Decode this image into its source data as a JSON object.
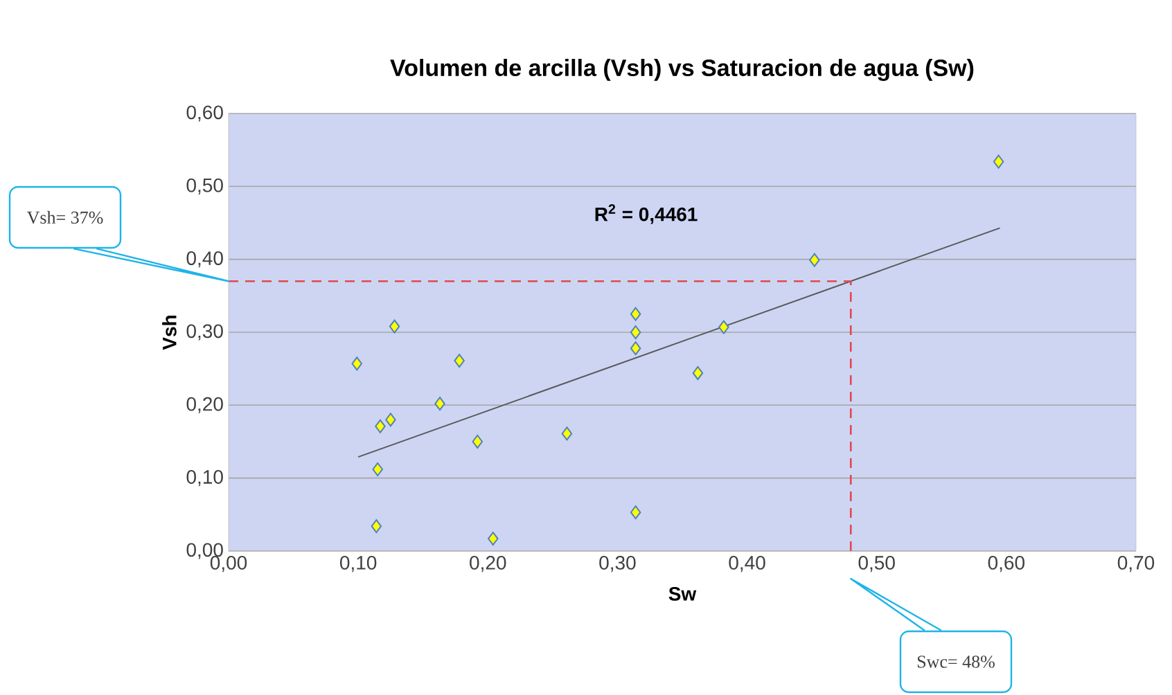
{
  "chart_data": {
    "type": "scatter",
    "title": "Volumen de arcilla (Vsh) vs Saturacion de agua (Sw)",
    "xlabel": "Sw",
    "ylabel": "Vsh",
    "xlim": [
      0,
      0.7
    ],
    "ylim": [
      0,
      0.6
    ],
    "xticks": [
      {
        "value": 0,
        "label": "0,00"
      },
      {
        "value": 0.1,
        "label": "0,10"
      },
      {
        "value": 0.2,
        "label": "0,20"
      },
      {
        "value": 0.3,
        "label": "0,30"
      },
      {
        "value": 0.4,
        "label": "0,40"
      },
      {
        "value": 0.5,
        "label": "0,50"
      },
      {
        "value": 0.6,
        "label": "0,60"
      },
      {
        "value": 0.7,
        "label": "0,70"
      }
    ],
    "yticks": [
      {
        "value": 0,
        "label": "0,00"
      },
      {
        "value": 0.1,
        "label": "0,10"
      },
      {
        "value": 0.2,
        "label": "0,20"
      },
      {
        "value": 0.3,
        "label": "0,30"
      },
      {
        "value": 0.4,
        "label": "0,40"
      },
      {
        "value": 0.5,
        "label": "0,50"
      },
      {
        "value": 0.6,
        "label": "0,60"
      }
    ],
    "grid": "y",
    "marker": "diamond",
    "series": [
      {
        "color": "#ffff00",
        "x": [
          0.099,
          0.128,
          0.178,
          0.163,
          0.117,
          0.125,
          0.192,
          0.261,
          0.115,
          0.114,
          0.204,
          0.314,
          0.314,
          0.314,
          0.314,
          0.382,
          0.362,
          0.452,
          0.594
        ],
        "values": [
          0.257,
          0.308,
          0.261,
          0.202,
          0.171,
          0.18,
          0.15,
          0.161,
          0.112,
          0.034,
          0.017,
          0.053,
          0.325,
          0.3,
          0.278,
          0.307,
          0.244,
          0.399,
          0.534
        ]
      },
      {
        "type": "line",
        "color": "#595959",
        "marker": "none",
        "x": [
          0.1,
          0.595
        ],
        "values": [
          0.129,
          0.443
        ]
      }
    ],
    "ref_lines": [
      {
        "axis": "y",
        "value": 0.37,
        "color": "#e8464b",
        "line_style": "dashed"
      },
      {
        "axis": "x",
        "value": 0.48,
        "color": "#e8464b",
        "line_style": "dashed"
      }
    ],
    "annotations": [
      "Vsh= 37%",
      "Swc= 48%",
      "R$^{2}$ = 0,4461"
    ]
  }
}
